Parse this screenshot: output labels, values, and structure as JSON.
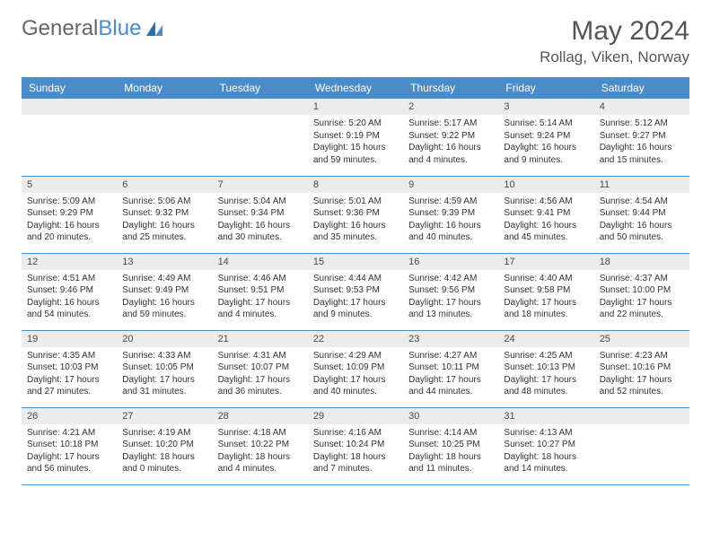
{
  "brand": {
    "part1": "General",
    "part2": "Blue"
  },
  "title": "May 2024",
  "location": "Rollag, Viken, Norway",
  "colors": {
    "header_bg": "#4a8cc7",
    "header_text": "#ffffff",
    "daynum_bg": "#ececec",
    "row_border": "#4a8cc7",
    "body_text": "#333333",
    "title_text": "#555555"
  },
  "font": {
    "title_size": 30,
    "location_size": 17,
    "th_size": 12,
    "cell_size": 10
  },
  "weekdays": [
    "Sunday",
    "Monday",
    "Tuesday",
    "Wednesday",
    "Thursday",
    "Friday",
    "Saturday"
  ],
  "weeks": [
    [
      null,
      null,
      null,
      {
        "n": "1",
        "sr": "5:20 AM",
        "ss": "9:19 PM",
        "d": "15 hours and 59 minutes."
      },
      {
        "n": "2",
        "sr": "5:17 AM",
        "ss": "9:22 PM",
        "d": "16 hours and 4 minutes."
      },
      {
        "n": "3",
        "sr": "5:14 AM",
        "ss": "9:24 PM",
        "d": "16 hours and 9 minutes."
      },
      {
        "n": "4",
        "sr": "5:12 AM",
        "ss": "9:27 PM",
        "d": "16 hours and 15 minutes."
      }
    ],
    [
      {
        "n": "5",
        "sr": "5:09 AM",
        "ss": "9:29 PM",
        "d": "16 hours and 20 minutes."
      },
      {
        "n": "6",
        "sr": "5:06 AM",
        "ss": "9:32 PM",
        "d": "16 hours and 25 minutes."
      },
      {
        "n": "7",
        "sr": "5:04 AM",
        "ss": "9:34 PM",
        "d": "16 hours and 30 minutes."
      },
      {
        "n": "8",
        "sr": "5:01 AM",
        "ss": "9:36 PM",
        "d": "16 hours and 35 minutes."
      },
      {
        "n": "9",
        "sr": "4:59 AM",
        "ss": "9:39 PM",
        "d": "16 hours and 40 minutes."
      },
      {
        "n": "10",
        "sr": "4:56 AM",
        "ss": "9:41 PM",
        "d": "16 hours and 45 minutes."
      },
      {
        "n": "11",
        "sr": "4:54 AM",
        "ss": "9:44 PM",
        "d": "16 hours and 50 minutes."
      }
    ],
    [
      {
        "n": "12",
        "sr": "4:51 AM",
        "ss": "9:46 PM",
        "d": "16 hours and 54 minutes."
      },
      {
        "n": "13",
        "sr": "4:49 AM",
        "ss": "9:49 PM",
        "d": "16 hours and 59 minutes."
      },
      {
        "n": "14",
        "sr": "4:46 AM",
        "ss": "9:51 PM",
        "d": "17 hours and 4 minutes."
      },
      {
        "n": "15",
        "sr": "4:44 AM",
        "ss": "9:53 PM",
        "d": "17 hours and 9 minutes."
      },
      {
        "n": "16",
        "sr": "4:42 AM",
        "ss": "9:56 PM",
        "d": "17 hours and 13 minutes."
      },
      {
        "n": "17",
        "sr": "4:40 AM",
        "ss": "9:58 PM",
        "d": "17 hours and 18 minutes."
      },
      {
        "n": "18",
        "sr": "4:37 AM",
        "ss": "10:00 PM",
        "d": "17 hours and 22 minutes."
      }
    ],
    [
      {
        "n": "19",
        "sr": "4:35 AM",
        "ss": "10:03 PM",
        "d": "17 hours and 27 minutes."
      },
      {
        "n": "20",
        "sr": "4:33 AM",
        "ss": "10:05 PM",
        "d": "17 hours and 31 minutes."
      },
      {
        "n": "21",
        "sr": "4:31 AM",
        "ss": "10:07 PM",
        "d": "17 hours and 36 minutes."
      },
      {
        "n": "22",
        "sr": "4:29 AM",
        "ss": "10:09 PM",
        "d": "17 hours and 40 minutes."
      },
      {
        "n": "23",
        "sr": "4:27 AM",
        "ss": "10:11 PM",
        "d": "17 hours and 44 minutes."
      },
      {
        "n": "24",
        "sr": "4:25 AM",
        "ss": "10:13 PM",
        "d": "17 hours and 48 minutes."
      },
      {
        "n": "25",
        "sr": "4:23 AM",
        "ss": "10:16 PM",
        "d": "17 hours and 52 minutes."
      }
    ],
    [
      {
        "n": "26",
        "sr": "4:21 AM",
        "ss": "10:18 PM",
        "d": "17 hours and 56 minutes."
      },
      {
        "n": "27",
        "sr": "4:19 AM",
        "ss": "10:20 PM",
        "d": "18 hours and 0 minutes."
      },
      {
        "n": "28",
        "sr": "4:18 AM",
        "ss": "10:22 PM",
        "d": "18 hours and 4 minutes."
      },
      {
        "n": "29",
        "sr": "4:16 AM",
        "ss": "10:24 PM",
        "d": "18 hours and 7 minutes."
      },
      {
        "n": "30",
        "sr": "4:14 AM",
        "ss": "10:25 PM",
        "d": "18 hours and 11 minutes."
      },
      {
        "n": "31",
        "sr": "4:13 AM",
        "ss": "10:27 PM",
        "d": "18 hours and 14 minutes."
      },
      null
    ]
  ],
  "labels": {
    "sunrise": "Sunrise: ",
    "sunset": "Sunset: ",
    "daylight": "Daylight: "
  }
}
